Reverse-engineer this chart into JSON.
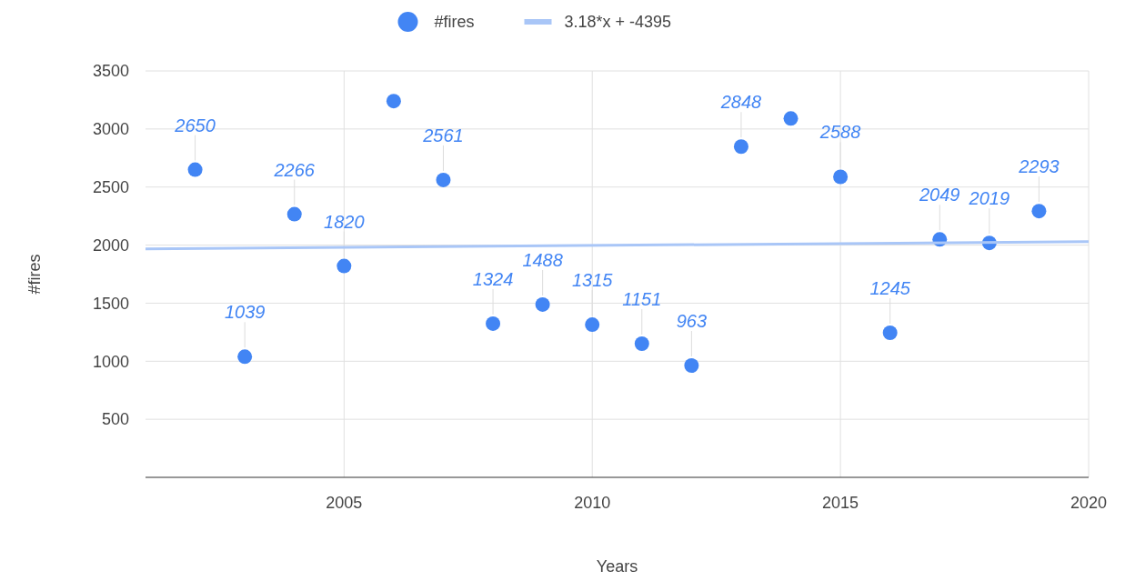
{
  "chart_data": {
    "type": "scatter",
    "xlabel": "Years",
    "ylabel": "#fires",
    "xlim": [
      2001,
      2020
    ],
    "xticks": [
      2005,
      2010,
      2015,
      2020
    ],
    "ylim": [
      0,
      3500
    ],
    "yticks": [
      500,
      1000,
      1500,
      2000,
      2500,
      3000,
      3500
    ],
    "grid": true,
    "legend": "top",
    "series": [
      {
        "name": "#fires",
        "color": "#4285f4",
        "marker": "circle",
        "x": [
          2002,
          2003,
          2004,
          2005,
          2006,
          2007,
          2008,
          2009,
          2010,
          2011,
          2012,
          2013,
          2014,
          2015,
          2016,
          2017,
          2018,
          2019
        ],
        "values": [
          2650,
          1039,
          2266,
          1820,
          3240,
          2561,
          1324,
          1488,
          1315,
          1151,
          963,
          2848,
          3090,
          2588,
          1245,
          2049,
          2019,
          2293
        ],
        "value_labels": [
          "2650",
          "1039",
          "2266",
          "1820",
          null,
          "2561",
          "1324",
          "1488",
          "1315",
          "1151",
          "963",
          "2848",
          null,
          "2588",
          "1245",
          "2049",
          "2019",
          "2293"
        ]
      },
      {
        "name": "3.18*x + -4395",
        "color": "#a9c6f7",
        "type": "line",
        "x": [
          2001,
          2020
        ],
        "values": [
          1968,
          2029
        ]
      }
    ]
  }
}
